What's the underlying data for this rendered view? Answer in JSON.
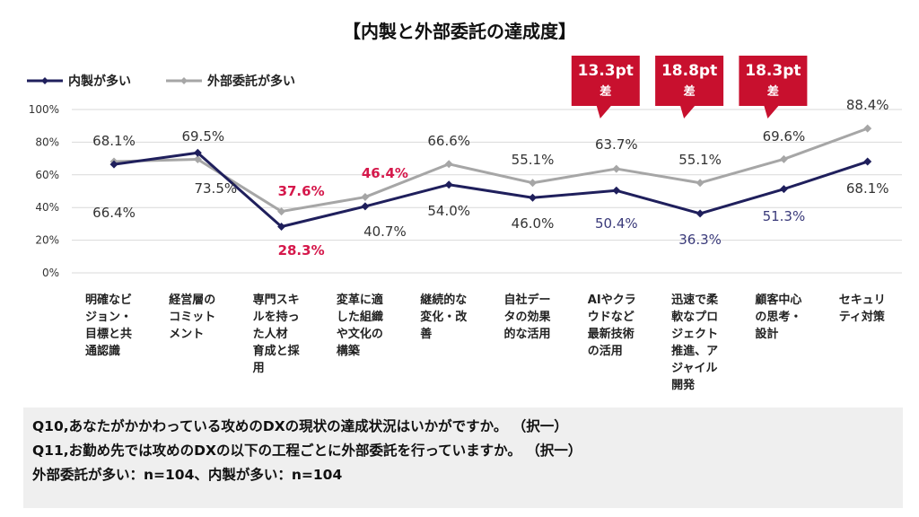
{
  "colors": {
    "inhouse": "#1f1f5c",
    "outsource": "#a6a6a6",
    "highlight": "#d5184b",
    "grid": "#d9d9d9",
    "callout": "#c8102e",
    "label_default": "#333333",
    "label_blue": "#3a3a7a"
  },
  "chart_data": {
    "type": "line",
    "title": "【内製と外部委託の達成度】",
    "ylim": [
      0,
      100
    ],
    "yticks": [
      "0%",
      "20%",
      "40%",
      "60%",
      "80%",
      "100%"
    ],
    "legend_position": "top-left",
    "categories": [
      [
        "明確なビ",
        "ジョン・",
        "目標と共",
        "通認識"
      ],
      [
        "経営層の",
        "コミット",
        "メント"
      ],
      [
        "専門スキ",
        "ルを持っ",
        "た人材",
        "育成と採",
        "用"
      ],
      [
        "変革に適",
        "した組織",
        "や文化の",
        "構築"
      ],
      [
        "継続的な",
        "変化・改",
        "善"
      ],
      [
        "自社デー",
        "タの効果",
        "的な活用"
      ],
      [
        "AIやクラ",
        "ウドなど",
        "最新技術",
        "の活用"
      ],
      [
        "迅速で柔",
        "軟なプロ",
        "ジェクト",
        "推進、ア",
        "ジャイル",
        "開発"
      ],
      [
        "顧客中心",
        "の思考・",
        "設計"
      ],
      [
        "セキュリ",
        "ティ対策"
      ]
    ],
    "series": [
      {
        "name": "内製が多い",
        "values": [
          66.4,
          73.5,
          28.3,
          40.7,
          54.0,
          46.0,
          50.4,
          36.3,
          51.3,
          68.1
        ],
        "labels": [
          "66.4%",
          "73.5%",
          "28.3%",
          "40.7%",
          "54.0%",
          "46.0%",
          "50.4%",
          "36.3%",
          "51.3%",
          "68.1%"
        ]
      },
      {
        "name": "外部委託が多い",
        "values": [
          68.1,
          69.5,
          37.6,
          46.4,
          66.6,
          55.1,
          63.7,
          55.1,
          69.6,
          88.4
        ],
        "labels": [
          "68.1%",
          "69.5%",
          "37.6%",
          "46.4%",
          "66.6%",
          "55.1%",
          "63.7%",
          "55.1%",
          "69.6%",
          "88.4%"
        ]
      }
    ],
    "callouts": [
      {
        "index": 6,
        "value": "13.3pt",
        "sub": "差"
      },
      {
        "index": 7,
        "value": "18.8pt",
        "sub": "差"
      },
      {
        "index": 8,
        "value": "18.3pt",
        "sub": "差"
      }
    ]
  },
  "notes": {
    "q10": "Q10,あなたがかかわっている攻めのDXの現状の達成状況はいかがですか。 （択一）",
    "q11": "Q11,お勤め先では攻めのDXの以下の工程ごとに外部委託を行っていますか。 （択一）",
    "n": "外部委託が多い：n=104、内製が多い：n=104"
  }
}
